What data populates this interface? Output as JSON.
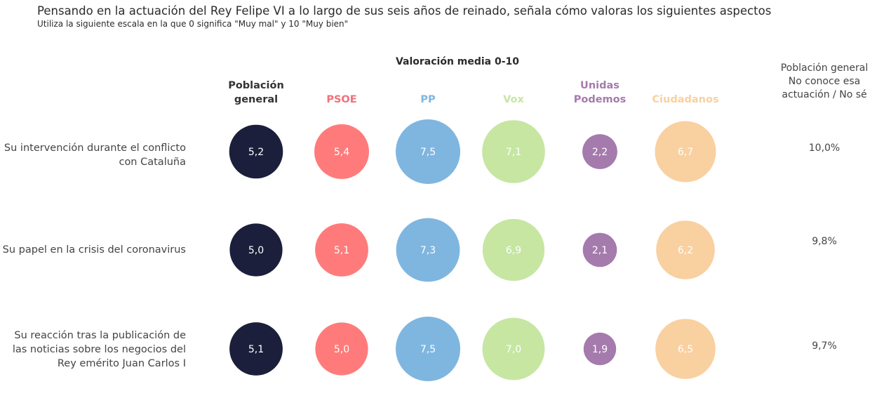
{
  "title": "Pensando en la actuación del Rey Felipe VI a lo largo de sus seis años de reinado, señala cómo valoras los siguientes aspectos",
  "subtitle": "Utiliza la siguiente escala en la que 0 significa \"Muy mal\" y 10 \"Muy bien\"",
  "chart_data": {
    "type": "bubble-table",
    "title": "Pensando en la actuación del Rey Felipe VI a lo largo de sus seis años de reinado, señala cómo valoras los siguientes aspectos",
    "subtitle": "Utiliza la siguiente escala en la que 0 significa \"Muy mal\" y 10 \"Muy bien\"",
    "group_title": "Valoración media 0-10",
    "value_range": [
      0,
      10
    ],
    "columns": [
      {
        "name": "Población general",
        "lines": [
          "Población",
          "general"
        ],
        "color": "#1b1f3b",
        "header_color": "#333333"
      },
      {
        "name": "PSOE",
        "lines": [
          "PSOE"
        ],
        "color": "#ff7b7b",
        "header_color": "#f0717a"
      },
      {
        "name": "PP",
        "lines": [
          "PP"
        ],
        "color": "#7fb6e0",
        "header_color": "#7fb6e0"
      },
      {
        "name": "Vox",
        "lines": [
          "Vox"
        ],
        "color": "#c6e6a2",
        "header_color": "#c6e6a2"
      },
      {
        "name": "Unidas Podemos",
        "lines": [
          "Unidas",
          "Podemos"
        ],
        "color": "#a57aad",
        "header_color": "#a57aad"
      },
      {
        "name": "Ciudadanos",
        "lines": [
          "Ciudadanos"
        ],
        "color": "#f9d0a0",
        "header_color": "#f9d0a0"
      }
    ],
    "rows": [
      {
        "label_lines": [
          "Su intervención durante el conflicto",
          "con Cataluña"
        ],
        "values": [
          5.2,
          5.4,
          7.5,
          7.1,
          2.2,
          6.7
        ],
        "labels": [
          "5,2",
          "5,4",
          "7,5",
          "7,1",
          "2,2",
          "6,7"
        ],
        "dont_know": "10,0%"
      },
      {
        "label_lines": [
          "Su papel en la crisis del coronavirus"
        ],
        "values": [
          5.0,
          5.1,
          7.3,
          6.9,
          2.1,
          6.2
        ],
        "labels": [
          "5,0",
          "5,1",
          "7,3",
          "6,9",
          "2,1",
          "6,2"
        ],
        "dont_know": "9,8%"
      },
      {
        "label_lines": [
          "Su reacción tras la publicación de",
          "las noticias sobre los negocios del",
          "Rey emérito Juan Carlos I"
        ],
        "values": [
          5.1,
          5.0,
          7.5,
          7.0,
          1.9,
          6.5
        ],
        "labels": [
          "5,1",
          "5,0",
          "7,5",
          "7,0",
          "1,9",
          "6,5"
        ],
        "dont_know": "9,7%"
      }
    ],
    "dont_know_header_lines": [
      "Población general",
      "No conoce esa",
      "actuación / No sé"
    ]
  }
}
